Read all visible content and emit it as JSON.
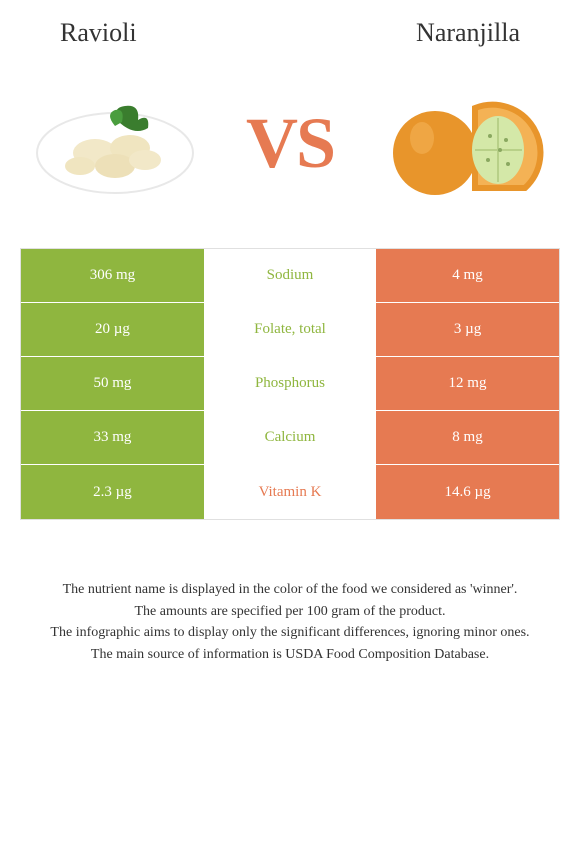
{
  "titles": {
    "left": "Ravioli",
    "right": "Naranjilla"
  },
  "vs_label": "VS",
  "colors": {
    "left_bg": "#8fb63f",
    "right_bg": "#e67a52",
    "winner_left": "#8fb63f",
    "winner_right": "#e67a52"
  },
  "rows": [
    {
      "nutrient": "Sodium",
      "left": "306 mg",
      "right": "4 mg",
      "winner": "left"
    },
    {
      "nutrient": "Folate, total",
      "left": "20 µg",
      "right": "3 µg",
      "winner": "left"
    },
    {
      "nutrient": "Phosphorus",
      "left": "50 mg",
      "right": "12 mg",
      "winner": "left"
    },
    {
      "nutrient": "Calcium",
      "left": "33 mg",
      "right": "8 mg",
      "winner": "left"
    },
    {
      "nutrient": "Vitamin K",
      "left": "2.3 µg",
      "right": "14.6 µg",
      "winner": "right"
    }
  ],
  "footnotes": [
    "The nutrient name is displayed in the color of the food we considered as 'winner'.",
    "The amounts are specified per 100 gram of the product.",
    "The infographic aims to display only the significant differences, ignoring minor ones.",
    "The main source of information is USDA Food Composition Database."
  ]
}
